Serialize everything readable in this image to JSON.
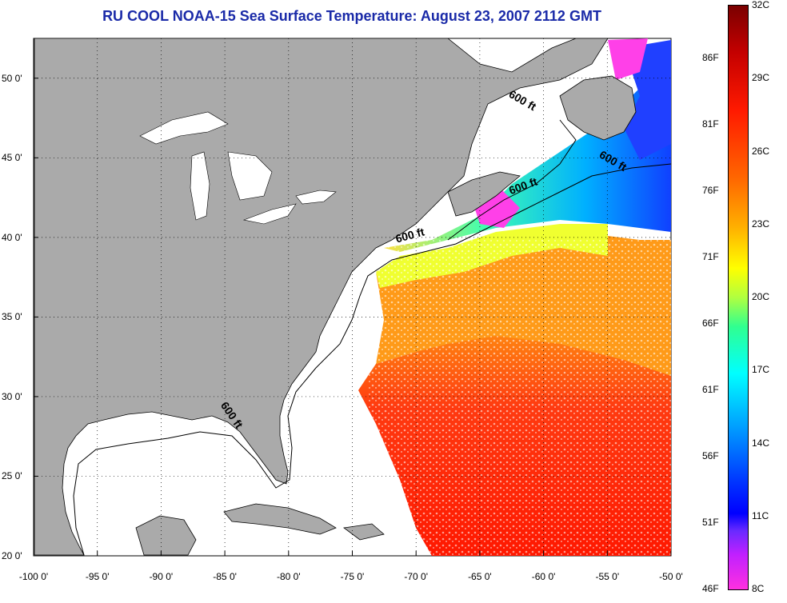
{
  "title": "RU COOL  NOAA-15  Sea Surface Temperature:  August 23, 2007 2112 GMT",
  "map": {
    "lon_range": [
      -100,
      -50
    ],
    "lat_range": [
      20,
      52.5
    ],
    "lat_ticks": [
      {
        "lat": 50,
        "label": "50 0'"
      },
      {
        "lat": 45,
        "label": "45 0'"
      },
      {
        "lat": 40,
        "label": "40 0'"
      },
      {
        "lat": 35,
        "label": "35 0'"
      },
      {
        "lat": 30,
        "label": "30 0'"
      },
      {
        "lat": 25,
        "label": "25 0'"
      },
      {
        "lat": 20,
        "label": "20 0'"
      }
    ],
    "lon_ticks": [
      {
        "lon": -100,
        "label": "-100 0'"
      },
      {
        "lon": -95,
        "label": "-95 0'"
      },
      {
        "lon": -90,
        "label": "-90 0'"
      },
      {
        "lon": -85,
        "label": "-85 0'"
      },
      {
        "lon": -80,
        "label": "-80 0'"
      },
      {
        "lon": -75,
        "label": "-75 0'"
      },
      {
        "lon": -70,
        "label": "-70 0'"
      },
      {
        "lon": -65,
        "label": "-65 0'"
      },
      {
        "lon": -60,
        "label": "-60 0'"
      },
      {
        "lon": -55,
        "label": "-55 0'"
      },
      {
        "lon": -50,
        "label": "-50 0'"
      }
    ],
    "shelf_labels": [
      {
        "text": "600 ft",
        "lon": -61.8,
        "lat": 48.4,
        "rotate": 30
      },
      {
        "text": "600 ft",
        "lon": -54.7,
        "lat": 44.6,
        "rotate": 30
      },
      {
        "text": "600 ft",
        "lon": -61.5,
        "lat": 43.0,
        "rotate": -20
      },
      {
        "text": "600 ft",
        "lon": -70.4,
        "lat": 39.9,
        "rotate": -15
      },
      {
        "text": "600 ft",
        "lon": -84.7,
        "lat": 28.7,
        "rotate": 55
      }
    ],
    "colors": {
      "land": "#aaaaaa",
      "water_nodata": "#ffffff",
      "contour": "#000000"
    }
  },
  "colorbar": {
    "min_c": 8,
    "max_c": 32,
    "min_f": 46,
    "max_f": 90,
    "celsius_labels": [
      {
        "value": 32,
        "label": "32C"
      },
      {
        "value": 29,
        "label": "29C"
      },
      {
        "value": 26,
        "label": "26C"
      },
      {
        "value": 23,
        "label": "23C"
      },
      {
        "value": 20,
        "label": "20C"
      },
      {
        "value": 17,
        "label": "17C"
      },
      {
        "value": 14,
        "label": "14C"
      },
      {
        "value": 11,
        "label": "11C"
      },
      {
        "value": 8,
        "label": "8C"
      }
    ],
    "fahrenheit_labels": [
      {
        "value": 86,
        "label": "86F"
      },
      {
        "value": 81,
        "label": "81F"
      },
      {
        "value": 76,
        "label": "76F"
      },
      {
        "value": 71,
        "label": "71F"
      },
      {
        "value": 66,
        "label": "66F"
      },
      {
        "value": 61,
        "label": "61F"
      },
      {
        "value": 56,
        "label": "56F"
      },
      {
        "value": 51,
        "label": "51F"
      },
      {
        "value": 46,
        "label": "46F"
      }
    ]
  }
}
